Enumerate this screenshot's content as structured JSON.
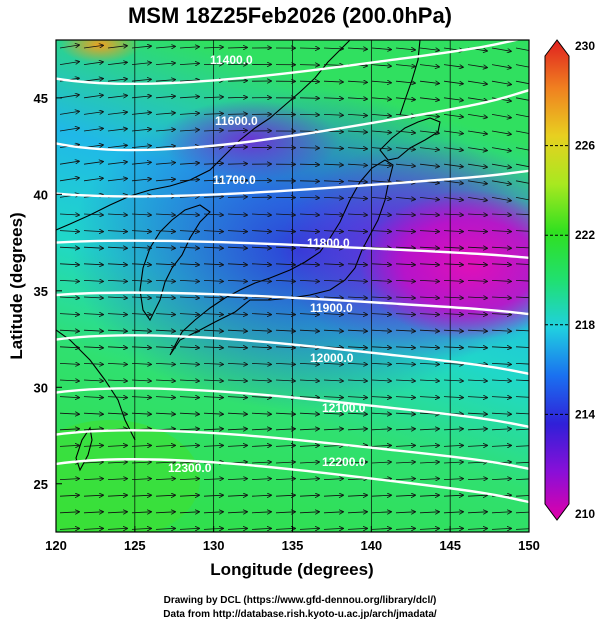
{
  "title": "MSM 18Z25Feb2026 (200.0hPa)",
  "xlabel": "Longitude (degrees)",
  "ylabel": "Latitude  (degrees)",
  "x_ticks": [
    "120",
    "125",
    "130",
    "135",
    "140",
    "145",
    "150"
  ],
  "y_ticks": [
    "25",
    "30",
    "35",
    "40",
    "45"
  ],
  "colorbar": {
    "unit": "",
    "labels": [
      "230",
      "226",
      "222",
      "218",
      "214",
      "210"
    ],
    "min": 210,
    "max": 230,
    "colors": [
      "#e000a8",
      "#8a0fd8",
      "#3020d8",
      "#1a70f0",
      "#20d0e0",
      "#20e070",
      "#30e020",
      "#a8e820",
      "#e8d020",
      "#f08020",
      "#e02020"
    ]
  },
  "contours": [
    {
      "label": "11400.0",
      "value": 11400
    },
    {
      "label": "11600.0",
      "value": 11600
    },
    {
      "label": "11700.0",
      "value": 11700
    },
    {
      "label": "11800.0",
      "value": 11800
    },
    {
      "label": "11900.0",
      "value": 11900
    },
    {
      "label": "12000.0",
      "value": 12000
    },
    {
      "label": "12100.0",
      "value": 12100
    },
    {
      "label": "12200.0",
      "value": 12200
    },
    {
      "label": "12300.0",
      "value": 12300
    }
  ],
  "footer": {
    "line1": "Drawing by DCL (https://www.gfd-dennou.org/library/dcl/)",
    "line2": "Data from http://database.rish.kyoto-u.ac.jp/arch/jmadata/"
  }
}
